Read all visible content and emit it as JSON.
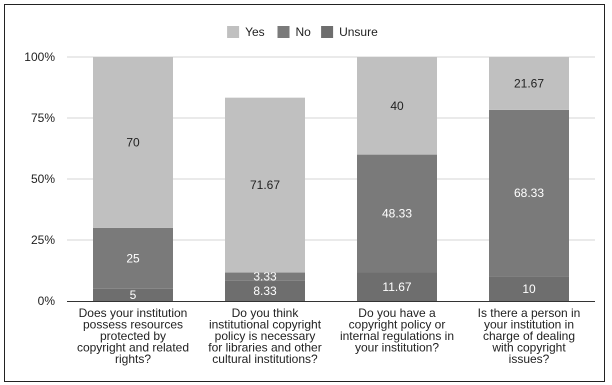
{
  "chart_data": {
    "type": "bar",
    "stacked": true,
    "percent": true,
    "categories": [
      [
        "Does your institution",
        "possess resources",
        "protected by",
        "copyright and related",
        "rights?"
      ],
      [
        "Do you think",
        "institutional copyright",
        "policy is necessary",
        "for libraries and other",
        "cultural institutions?"
      ],
      [
        "Do you have a",
        "copyright policy or",
        "internal regulations in",
        "your institution?"
      ],
      [
        "Is there a person in",
        "your institution in",
        "charge of dealing",
        "with copyright",
        "issues?"
      ]
    ],
    "series": [
      {
        "name": "Unsure",
        "color": "#6e6e6e",
        "values": [
          5,
          8.33,
          11.67,
          10
        ],
        "labels": [
          "5",
          "8.33",
          "11.67",
          "10"
        ],
        "label_color": "#ffffff"
      },
      {
        "name": "No",
        "color": "#7a7a7a",
        "values": [
          25,
          3.33,
          48.33,
          68.33
        ],
        "labels": [
          "25",
          "3.33",
          "48.33",
          "68.33"
        ],
        "label_color": "#ffffff"
      },
      {
        "name": "Yes",
        "color": "#c0c0c0",
        "values": [
          70,
          71.67,
          40,
          21.67
        ],
        "labels": [
          "70",
          "71.67",
          "40",
          "21.67"
        ],
        "label_color": "#222222"
      }
    ],
    "legend_order": [
      "Yes",
      "No",
      "Unsure"
    ],
    "legend_position": "top",
    "ylim": [
      0,
      100
    ],
    "yticks": [
      "0%",
      "25%",
      "50%",
      "75%",
      "100%"
    ],
    "grid": true
  }
}
